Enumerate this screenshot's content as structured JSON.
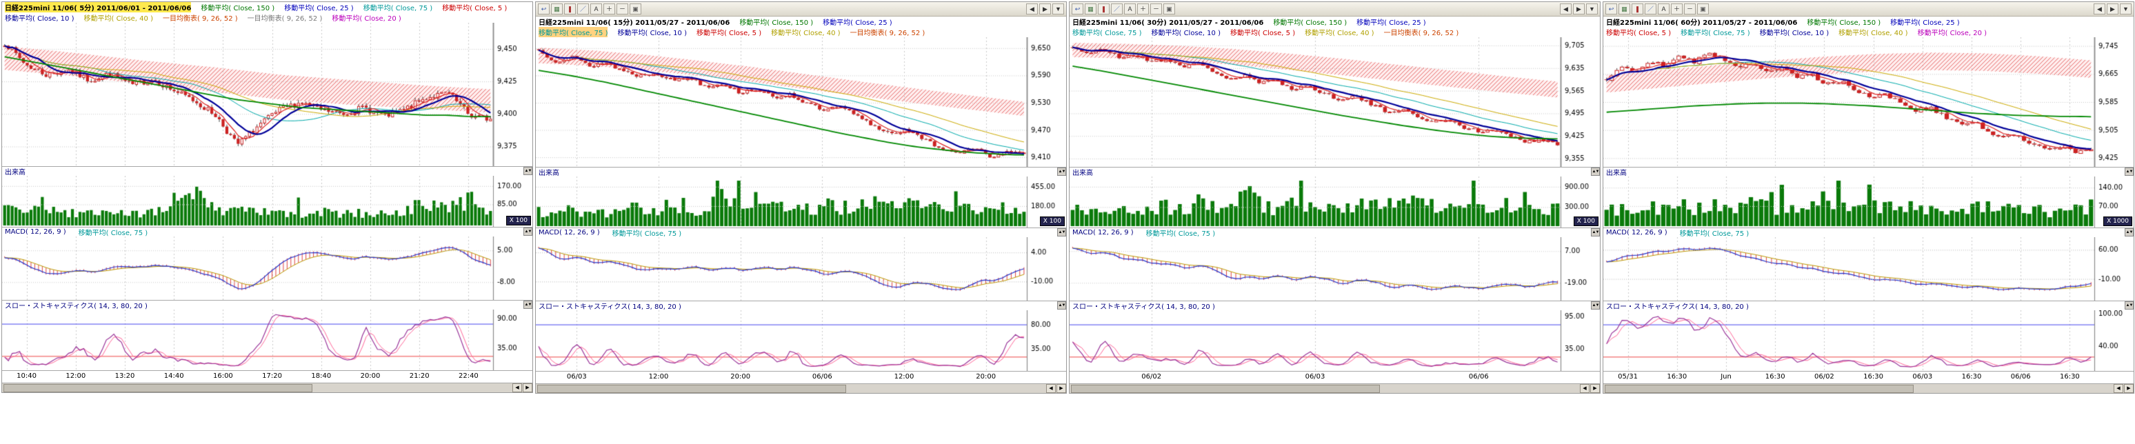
{
  "page": {
    "bg": "#ffffff"
  },
  "toolbar": {
    "left_icons": [
      {
        "name": "undo-icon",
        "glyph": "↩",
        "color": "#3355aa"
      },
      {
        "name": "chart-grid-icon",
        "glyph": "▦",
        "color": "#447744"
      },
      {
        "name": "candlestick-icon",
        "glyph": "❚",
        "color": "#aa3333"
      },
      {
        "name": "trendline-icon",
        "glyph": "／",
        "color": "#3355aa"
      },
      {
        "name": "text-tool-icon",
        "glyph": "A",
        "color": "#333333"
      },
      {
        "name": "zoom-in-icon",
        "glyph": "＋",
        "color": "#333333"
      },
      {
        "name": "zoom-out-icon",
        "glyph": "－",
        "color": "#333333"
      },
      {
        "name": "settings-icon",
        "glyph": "▣",
        "color": "#555555"
      }
    ],
    "right_icons": [
      {
        "name": "scroll-back-icon",
        "glyph": "◀",
        "color": "#333333"
      },
      {
        "name": "scroll-forward-icon",
        "glyph": "▶",
        "color": "#333333"
      },
      {
        "name": "menu-dropdown-icon",
        "glyph": "▼",
        "color": "#333333"
      }
    ]
  },
  "panels": [
    {
      "name": "chart-window-5min",
      "title": "日経225mini 11/06( 5分)  2011/06/01 - 2011/06/06",
      "has_toolbar": false,
      "legend1": [
        {
          "text": "日経225mini 11/06( 5分)  2011/06/01 - 2011/06/06",
          "color": "#000000",
          "bold": true,
          "hl": "#ffe94d"
        },
        {
          "text": "移動平均( Close, 150 )",
          "color": "#007700"
        },
        {
          "text": "移動平均( Close, 25 )",
          "color": "#0000bb"
        },
        {
          "text": "移動平均( Close, 75 )",
          "color": "#009999"
        },
        {
          "text": "移動平均( Close, 5 )",
          "color": "#cc0000"
        }
      ],
      "legend2": [
        {
          "text": "移動平均( Close, 10 )",
          "color": "#000099"
        },
        {
          "text": "移動平均( Close, 40 )",
          "color": "#b0a000"
        },
        {
          "text": "一目均衡表( 9, 26, 52 )",
          "color": "#cc4400"
        },
        {
          "text": "一目均衡表( 9, 26, 52 )",
          "color": "#777777"
        },
        {
          "text": "移動平均( Close, 20 )",
          "color": "#bb00bb"
        }
      ],
      "price": {
        "min": 9362,
        "max": 9468,
        "ticks": [
          {
            "label": "9,450",
            "v": 9450
          },
          {
            "label": "9,425",
            "v": 9425
          },
          {
            "label": "9,400",
            "v": 9400
          },
          {
            "label": "9,375",
            "v": 9375
          }
        ]
      },
      "volume": {
        "label": "出来高",
        "scale": "X 100",
        "ticks": [
          {
            "label": "170.00",
            "f": 0.2
          },
          {
            "label": "85.00",
            "f": 0.56
          }
        ]
      },
      "macd": {
        "label1": "MACD( 12, 26, 9 )",
        "label2": "移動平均( Close, 75 )",
        "ticks": [
          {
            "label": "5.00",
            "f": 0.22
          },
          {
            "label": "-8.00",
            "f": 0.72
          }
        ]
      },
      "stoch": {
        "label": "スロー・ストキャスティクス( 14, 3, 80, 20 )",
        "ticks": [
          {
            "label": "90.00",
            "v": 90
          },
          {
            "label": "35.00",
            "v": 35
          }
        ]
      },
      "time_ticks": [
        "10:40",
        "12:00",
        "13:20",
        "14:40",
        "16:00",
        "17:20",
        "18:40",
        "20:00",
        "21:20",
        "22:40"
      ],
      "series": {
        "candles": 130,
        "noise": 3.2,
        "seed": 7,
        "closes": [
          9455,
          9438,
          9430,
          9434,
          9426,
          9431,
          9422,
          9427,
          9418,
          9410,
          9399,
          9376,
          9391,
          9403,
          9409,
          9403,
          9400,
          9405,
          9398,
          9404,
          9413,
          9416,
          9399,
          9396
        ],
        "green": [
          9444,
          9441,
          9438,
          9435,
          9432,
          9429,
          9426,
          9423,
          9420,
          9417,
          9414,
          9411,
          9409,
          9407,
          9405,
          9404,
          9403,
          9402,
          9401,
          9400,
          9399,
          9399,
          9398,
          9398
        ],
        "cloud_top": [
          9452,
          9447,
          9441,
          9436,
          9430,
          9426,
          9422,
          9419
        ],
        "cloud_bottom": [
          9434,
          9429,
          9423,
          9417,
          9411,
          9407,
          9404,
          9401
        ],
        "vol_env": [
          0.55,
          0.3,
          0.6,
          0.35,
          0.3,
          0.42,
          0.3,
          0.5,
          0.4,
          0.92,
          0.5,
          0.4,
          0.36,
          0.34,
          0.3,
          0.4,
          0.3,
          0.36,
          0.3,
          0.46,
          0.6,
          0.5,
          0.72,
          0.4
        ]
      }
    },
    {
      "name": "chart-window-15min",
      "title": "日経225mini 11/06( 15分)  2011/05/27 - 2011/06/06",
      "has_toolbar": true,
      "legend1": [
        {
          "text": "日経225mini 11/06( 15分)  2011/05/27 - 2011/06/06",
          "color": "#000000",
          "bold": true
        },
        {
          "text": "移動平均( Close, 150 )",
          "color": "#007700"
        },
        {
          "text": "移動平均( Close, 25 )",
          "color": "#0000bb"
        }
      ],
      "legend2": [
        {
          "text": "移動平均( Close, 75 )",
          "color": "#009999",
          "hl": "#ffd27f"
        },
        {
          "text": "移動平均( Close, 10 )",
          "color": "#000099"
        },
        {
          "text": "移動平均( Close, 5 )",
          "color": "#cc0000"
        },
        {
          "text": "移動平均( Close, 40 )",
          "color": "#b0a000"
        },
        {
          "text": "一目均衡表( 9, 26, 52 )",
          "color": "#cc4400"
        }
      ],
      "price": {
        "min": 9395,
        "max": 9668,
        "ticks": [
          {
            "label": "9,650",
            "v": 9650
          },
          {
            "label": "9,590",
            "v": 9590
          },
          {
            "label": "9,530",
            "v": 9530
          },
          {
            "label": "9,470",
            "v": 9470
          },
          {
            "label": "9,410",
            "v": 9410
          }
        ]
      },
      "volume": {
        "label": "出来高",
        "scale": "X 100",
        "ticks": [
          {
            "label": "455.00",
            "f": 0.2
          },
          {
            "label": "180.00",
            "f": 0.58
          }
        ]
      },
      "macd": {
        "label1": "MACD( 12, 26, 9 )",
        "label2": "移動平均( Close, 75 )",
        "ticks": [
          {
            "label": "4.00",
            "f": 0.24
          },
          {
            "label": "-10.00",
            "f": 0.7
          }
        ]
      },
      "stoch": {
        "label": "スロー・ストキャスティクス( 14, 3, 80, 20 )",
        "ticks": [
          {
            "label": "80.00",
            "v": 80
          },
          {
            "label": "35.00",
            "v": 35
          }
        ]
      },
      "time_ticks": [
        "06/03",
        "12:00",
        "20:00",
        "06/06",
        "12:00",
        "20:00"
      ],
      "series": {
        "candles": 115,
        "noise": 5.5,
        "seed": 13,
        "closes": [
          9645,
          9622,
          9633,
          9611,
          9619,
          9601,
          9589,
          9597,
          9579,
          9586,
          9566,
          9573,
          9553,
          9561,
          9541,
          9549,
          9529,
          9513,
          9521,
          9501,
          9479,
          9463,
          9471,
          9449,
          9431,
          9421,
          9429,
          9413,
          9421,
          9417
        ],
        "green": [
          9601,
          9595,
          9589,
          9582,
          9575,
          9567,
          9559,
          9551,
          9543,
          9535,
          9527,
          9519,
          9511,
          9503,
          9495,
          9487,
          9479,
          9471,
          9463,
          9456,
          9449,
          9442,
          9436,
          9431,
          9427,
          9423,
          9420,
          9418,
          9416,
          9415
        ],
        "cloud_top": [
          9651,
          9645,
          9635,
          9622,
          9608,
          9592,
          9576,
          9561,
          9546,
          9532
        ],
        "cloud_bottom": [
          9617,
          9611,
          9601,
          9589,
          9575,
          9559,
          9544,
          9529,
          9515,
          9501
        ],
        "vol_env": [
          0.45,
          0.35,
          0.5,
          0.4,
          0.36,
          0.46,
          0.5,
          0.4,
          0.62,
          0.46,
          0.5,
          0.92,
          0.6,
          0.5,
          0.56,
          0.5,
          0.46,
          0.62,
          0.5,
          0.56,
          0.66,
          0.5,
          0.6,
          0.56,
          0.5,
          0.6,
          0.5,
          0.46,
          0.56,
          0.5
        ]
      }
    },
    {
      "name": "chart-window-30min",
      "title": "日経225mini 11/06( 30分)  2011/05/27 - 2011/06/06",
      "has_toolbar": true,
      "legend1": [
        {
          "text": "日経225mini 11/06( 30分)  2011/05/27 - 2011/06/06",
          "color": "#000000",
          "bold": true
        },
        {
          "text": "移動平均( Close, 150 )",
          "color": "#007700"
        },
        {
          "text": "移動平均( Close, 25 )",
          "color": "#0000bb"
        }
      ],
      "legend2": [
        {
          "text": "移動平均( Close, 75 )",
          "color": "#009999"
        },
        {
          "text": "移動平均( Close, 10 )",
          "color": "#000099"
        },
        {
          "text": "移動平均( Close, 5 )",
          "color": "#cc0000"
        },
        {
          "text": "移動平均( Close, 40 )",
          "color": "#b0a000"
        },
        {
          "text": "一目均衡表( 9, 26, 52 )",
          "color": "#cc4400"
        }
      ],
      "price": {
        "min": 9338,
        "max": 9722,
        "ticks": [
          {
            "label": "9,705",
            "v": 9705
          },
          {
            "label": "9,635",
            "v": 9635
          },
          {
            "label": "9,565",
            "v": 9565
          },
          {
            "label": "9,495",
            "v": 9495
          },
          {
            "label": "9,425",
            "v": 9425
          },
          {
            "label": "9,355",
            "v": 9355
          }
        ]
      },
      "volume": {
        "label": "出来高",
        "scale": "X 100",
        "ticks": [
          {
            "label": "900.00",
            "f": 0.2
          },
          {
            "label": "300.00",
            "f": 0.6
          }
        ]
      },
      "macd": {
        "label1": "MACD( 12, 26, 9 )",
        "label2": "移動平均( Close, 75 )",
        "ticks": [
          {
            "label": "7.00",
            "f": 0.22
          },
          {
            "label": "-19.00",
            "f": 0.72
          }
        ]
      },
      "stoch": {
        "label": "スロー・ストキャスティクス( 14, 3, 80, 20 )",
        "ticks": [
          {
            "label": "95.00",
            "v": 95
          },
          {
            "label": "35.00",
            "v": 35
          }
        ]
      },
      "time_ticks": [
        "06/02",
        "06/03",
        "06/06"
      ],
      "series": {
        "candles": 105,
        "noise": 7.5,
        "seed": 21,
        "closes": [
          9700,
          9681,
          9692,
          9669,
          9677,
          9656,
          9663,
          9641,
          9649,
          9626,
          9601,
          9611,
          9589,
          9597,
          9573,
          9581,
          9557,
          9541,
          9549,
          9525,
          9501,
          9509,
          9485,
          9469,
          9477,
          9453,
          9437,
          9445,
          9421,
          9409,
          9416,
          9399
        ],
        "green": [
          9641,
          9633,
          9625,
          9616,
          9607,
          9598,
          9589,
          9580,
          9571,
          9562,
          9553,
          9544,
          9535,
          9526,
          9517,
          9508,
          9499,
          9490,
          9482,
          9474,
          9466,
          9458,
          9451,
          9444,
          9438,
          9432,
          9427,
          9423,
          9420,
          9418,
          9417,
          9416
        ],
        "cloud_top": [
          9713,
          9710,
          9704,
          9694,
          9680,
          9664,
          9646,
          9628,
          9610,
          9593
        ],
        "cloud_bottom": [
          9669,
          9665,
          9657,
          9645,
          9630,
          9613,
          9595,
          9577,
          9560,
          9544
        ],
        "vol_env": [
          0.5,
          0.4,
          0.56,
          0.46,
          0.4,
          0.5,
          0.56,
          0.46,
          0.66,
          0.5,
          0.56,
          0.95,
          0.6,
          0.5,
          0.6,
          0.56,
          0.5,
          0.66,
          0.56,
          0.6,
          0.7,
          0.56,
          0.66,
          0.6,
          0.56,
          0.66,
          0.56,
          0.5,
          0.6,
          0.56,
          0.5,
          0.46
        ]
      }
    },
    {
      "name": "chart-window-60min",
      "title": "日経225mini 11/06( 60分)  2011/05/27 - 2011/06/06",
      "has_toolbar": true,
      "legend1": [
        {
          "text": "日経225mini 11/06( 60分)  2011/05/27 - 2011/06/06",
          "color": "#000000",
          "bold": true
        },
        {
          "text": "移動平均( Close, 150 )",
          "color": "#007700"
        },
        {
          "text": "移動平均( Close, 25 )",
          "color": "#0000bb"
        }
      ],
      "legend2": [
        {
          "text": "移動平均( Close, 5 )",
          "color": "#cc0000"
        },
        {
          "text": "移動平均( Close, 75 )",
          "color": "#009999"
        },
        {
          "text": "移動平均( Close, 10 )",
          "color": "#000099"
        },
        {
          "text": "移動平均( Close, 40 )",
          "color": "#b0a000"
        },
        {
          "text": "移動平均( Close, 20 )",
          "color": "#bb00bb"
        }
      ],
      "price": {
        "min": 9408,
        "max": 9762,
        "ticks": [
          {
            "label": "9,745",
            "v": 9745
          },
          {
            "label": "9,665",
            "v": 9665
          },
          {
            "label": "9,585",
            "v": 9585
          },
          {
            "label": "9,505",
            "v": 9505
          },
          {
            "label": "9,425",
            "v": 9425
          }
        ]
      },
      "volume": {
        "label": "出来高",
        "scale": "X 1000",
        "ticks": [
          {
            "label": "140.00",
            "f": 0.22
          },
          {
            "label": "70.00",
            "f": 0.58
          }
        ]
      },
      "macd": {
        "label1": "MACD( 12, 26, 9 )",
        "label2": "移動平均( Close, 75 )",
        "ticks": [
          {
            "label": "60.00",
            "f": 0.2
          },
          {
            "label": "-10.00",
            "f": 0.66
          }
        ]
      },
      "stoch": {
        "label": "スロー・ストキャスティクス( 14, 3, 80, 20 )",
        "ticks": [
          {
            "label": "100.00",
            "v": 100
          },
          {
            "label": "40.00",
            "v": 40
          }
        ]
      },
      "time_ticks": [
        "05/31",
        "16:30",
        "Jun",
        "16:30",
        "06/02",
        "16:30",
        "06/03",
        "16:30",
        "06/06",
        "16:30"
      ],
      "series": {
        "candles": 95,
        "noise": 8.5,
        "seed": 29,
        "closes": [
          9652,
          9690,
          9673,
          9706,
          9689,
          9713,
          9701,
          9722,
          9709,
          9689,
          9697,
          9673,
          9681,
          9656,
          9663,
          9637,
          9646,
          9619,
          9601,
          9609,
          9583,
          9561,
          9569,
          9543,
          9521,
          9529,
          9501,
          9483,
          9491,
          9467,
          9451,
          9459,
          9443,
          9451
        ],
        "green": [
          9556,
          9559,
          9562,
          9565,
          9568,
          9571,
          9574,
          9576,
          9578,
          9580,
          9581,
          9582,
          9582,
          9582,
          9581,
          9580,
          9578,
          9576,
          9574,
          9571,
          9568,
          9565,
          9562,
          9559,
          9556,
          9553,
          9551,
          9549,
          9547,
          9546,
          9545,
          9544,
          9544,
          9543
        ],
        "cloud_top": [
          9662,
          9676,
          9690,
          9703,
          9714,
          9722,
          9726,
          9724,
          9716,
          9704
        ],
        "cloud_bottom": [
          9612,
          9626,
          9640,
          9653,
          9664,
          9672,
          9676,
          9674,
          9666,
          9654
        ],
        "vol_env": [
          0.4,
          0.5,
          0.45,
          0.55,
          0.5,
          0.6,
          0.5,
          0.66,
          0.56,
          0.5,
          0.6,
          0.5,
          0.56,
          0.46,
          0.5,
          0.9,
          0.6,
          0.5,
          0.56,
          0.5,
          0.6,
          0.5,
          0.56,
          0.5,
          0.46,
          0.56,
          0.5,
          0.46,
          0.5,
          0.46,
          0.4,
          0.5,
          0.46,
          0.4
        ]
      }
    }
  ],
  "scrollbar": {
    "left_arrow": "◀",
    "right_arrow": "▶"
  },
  "spinner_glyph": "▲▼"
}
